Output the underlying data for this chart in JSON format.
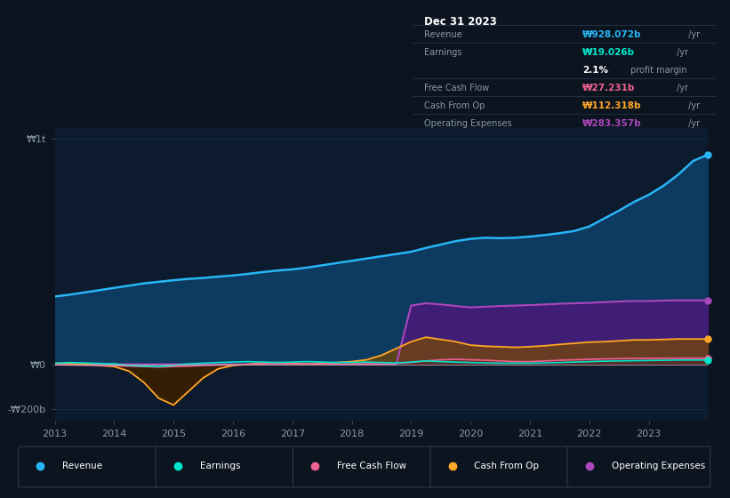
{
  "bg_color": "#0c1420",
  "plot_bg_color": "#0d1b2e",
  "grid_color": "#1a3050",
  "years": [
    2013.0,
    2013.25,
    2013.5,
    2013.75,
    2014.0,
    2014.25,
    2014.5,
    2014.75,
    2015.0,
    2015.25,
    2015.5,
    2015.75,
    2016.0,
    2016.25,
    2016.5,
    2016.75,
    2017.0,
    2017.25,
    2017.5,
    2017.75,
    2018.0,
    2018.25,
    2018.5,
    2018.75,
    2019.0,
    2019.25,
    2019.5,
    2019.75,
    2020.0,
    2020.25,
    2020.5,
    2020.75,
    2021.0,
    2021.25,
    2021.5,
    2021.75,
    2022.0,
    2022.25,
    2022.5,
    2022.75,
    2023.0,
    2023.25,
    2023.5,
    2023.75,
    2024.0
  ],
  "revenue": [
    300,
    308,
    318,
    328,
    338,
    348,
    358,
    365,
    372,
    378,
    382,
    388,
    393,
    400,
    408,
    415,
    420,
    428,
    438,
    448,
    458,
    468,
    478,
    488,
    498,
    515,
    530,
    545,
    555,
    560,
    558,
    560,
    565,
    572,
    580,
    590,
    610,
    645,
    680,
    718,
    750,
    790,
    840,
    900,
    928
  ],
  "earnings": [
    5,
    8,
    6,
    4,
    2,
    -5,
    -8,
    -10,
    -5,
    2,
    5,
    8,
    10,
    12,
    10,
    8,
    10,
    12,
    10,
    8,
    8,
    10,
    8,
    6,
    10,
    15,
    12,
    10,
    8,
    6,
    5,
    5,
    5,
    6,
    8,
    10,
    12,
    14,
    15,
    16,
    17,
    18,
    19,
    19,
    19
  ],
  "free_cash_flow": [
    -2,
    -3,
    -4,
    -5,
    -6,
    -8,
    -10,
    -12,
    -10,
    -8,
    -5,
    -3,
    -2,
    0,
    2,
    3,
    2,
    2,
    2,
    2,
    2,
    2,
    2,
    4,
    8,
    15,
    20,
    22,
    20,
    18,
    15,
    12,
    12,
    15,
    18,
    20,
    22,
    24,
    25,
    26,
    26,
    27,
    27,
    27,
    27
  ],
  "cash_from_op": [
    5,
    3,
    0,
    -5,
    -10,
    -30,
    -80,
    -150,
    -180,
    -120,
    -60,
    -20,
    -5,
    0,
    5,
    8,
    5,
    2,
    5,
    8,
    12,
    20,
    40,
    70,
    100,
    120,
    110,
    100,
    85,
    80,
    78,
    75,
    78,
    82,
    88,
    93,
    98,
    100,
    104,
    108,
    108,
    110,
    112,
    112,
    112
  ],
  "operating_expenses": [
    0,
    0,
    0,
    0,
    0,
    0,
    0,
    0,
    0,
    0,
    0,
    0,
    0,
    0,
    0,
    0,
    0,
    0,
    0,
    0,
    0,
    0,
    0,
    0,
    260,
    270,
    265,
    258,
    252,
    255,
    258,
    260,
    262,
    265,
    268,
    270,
    272,
    275,
    278,
    280,
    280,
    282,
    283,
    283,
    283
  ],
  "revenue_color": "#29b6f6",
  "earnings_color": "#00e5cc",
  "free_cash_flow_color": "#f06292",
  "cash_from_op_color": "#ffa726",
  "operating_expenses_color": "#ab47bc",
  "revenue_fill": "#0d3355",
  "ylim_min": -250,
  "ylim_max": 1050,
  "xtick_years": [
    2013,
    2014,
    2015,
    2016,
    2017,
    2018,
    2019,
    2020,
    2021,
    2022,
    2023
  ],
  "legend_items": [
    {
      "label": "Revenue",
      "color": "#29b6f6"
    },
    {
      "label": "Earnings",
      "color": "#00e5cc"
    },
    {
      "label": "Free Cash Flow",
      "color": "#f06292"
    },
    {
      "label": "Cash From Op",
      "color": "#ffa726"
    },
    {
      "label": "Operating Expenses",
      "color": "#ab47bc"
    }
  ],
  "infobox": {
    "title": "Dec 31 2023",
    "rows": [
      {
        "label": "Revenue",
        "value": "₩928.072b",
        "vcolor": "#29b6f6",
        "suffix": " /yr"
      },
      {
        "label": "Earnings",
        "value": "₩19.026b",
        "vcolor": "#00e5cc",
        "suffix": " /yr"
      },
      {
        "label": "",
        "value": "2.1%",
        "vcolor": "#ffffff",
        "suffix": " profit margin"
      },
      {
        "label": "Free Cash Flow",
        "value": "₩27.231b",
        "vcolor": "#f06292",
        "suffix": " /yr"
      },
      {
        "label": "Cash From Op",
        "value": "₩112.318b",
        "vcolor": "#ffa726",
        "suffix": " /yr"
      },
      {
        "label": "Operating Expenses",
        "value": "₩283.357b",
        "vcolor": "#ab47bc",
        "suffix": " /yr"
      }
    ]
  }
}
